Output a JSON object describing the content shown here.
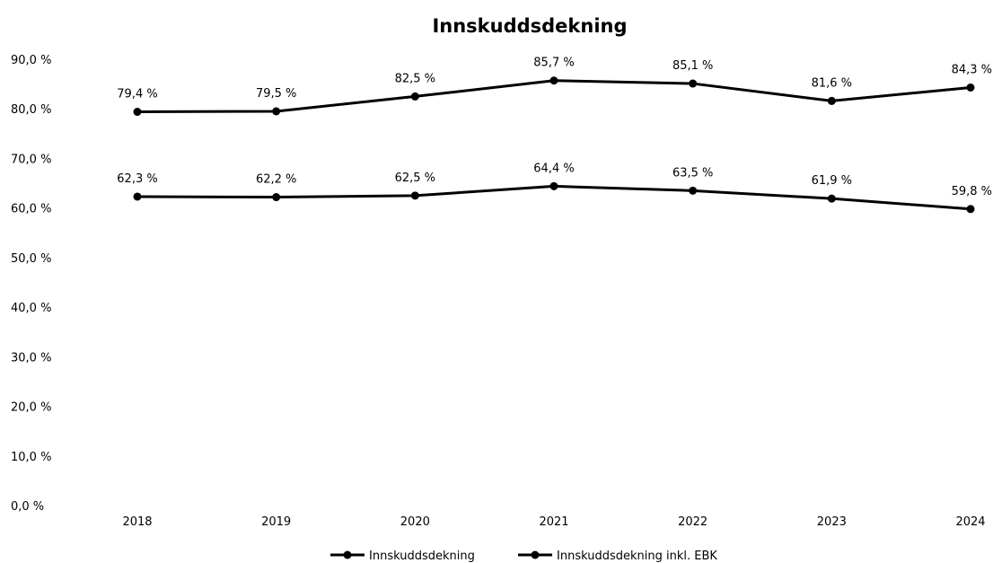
{
  "chart_data": {
    "type": "line",
    "title": "Innskuddsdekning",
    "xlabel": "",
    "ylabel": "",
    "categories": [
      "2018",
      "2019",
      "2020",
      "2021",
      "2022",
      "2023",
      "2024"
    ],
    "ylim": [
      0,
      90
    ],
    "yticks": [
      "0,0 %",
      "10,0 %",
      "20,0 %",
      "30,0 %",
      "40,0 %",
      "50,0 %",
      "60,0 %",
      "70,0 %",
      "80,0 %",
      "90,0 %"
    ],
    "grid": false,
    "legend_position": "bottom",
    "series": [
      {
        "name": "Innskuddsdekning",
        "values": [
          62.3,
          62.2,
          62.5,
          64.4,
          63.5,
          61.9,
          59.8
        ],
        "labels": [
          "62,3 %",
          "62,2 %",
          "62,5 %",
          "64,4 %",
          "63,5 %",
          "61,9 %",
          "59,8 %"
        ],
        "color": "#000000"
      },
      {
        "name": "Innskuddsdekning inkl. EBK",
        "values": [
          79.4,
          79.5,
          82.5,
          85.7,
          85.1,
          81.6,
          84.3
        ],
        "labels": [
          "79,4 %",
          "79,5 %",
          "82,5 %",
          "85,7 %",
          "85,1 %",
          "81,6 %",
          "84,3 %"
        ],
        "color": "#000000"
      }
    ]
  }
}
